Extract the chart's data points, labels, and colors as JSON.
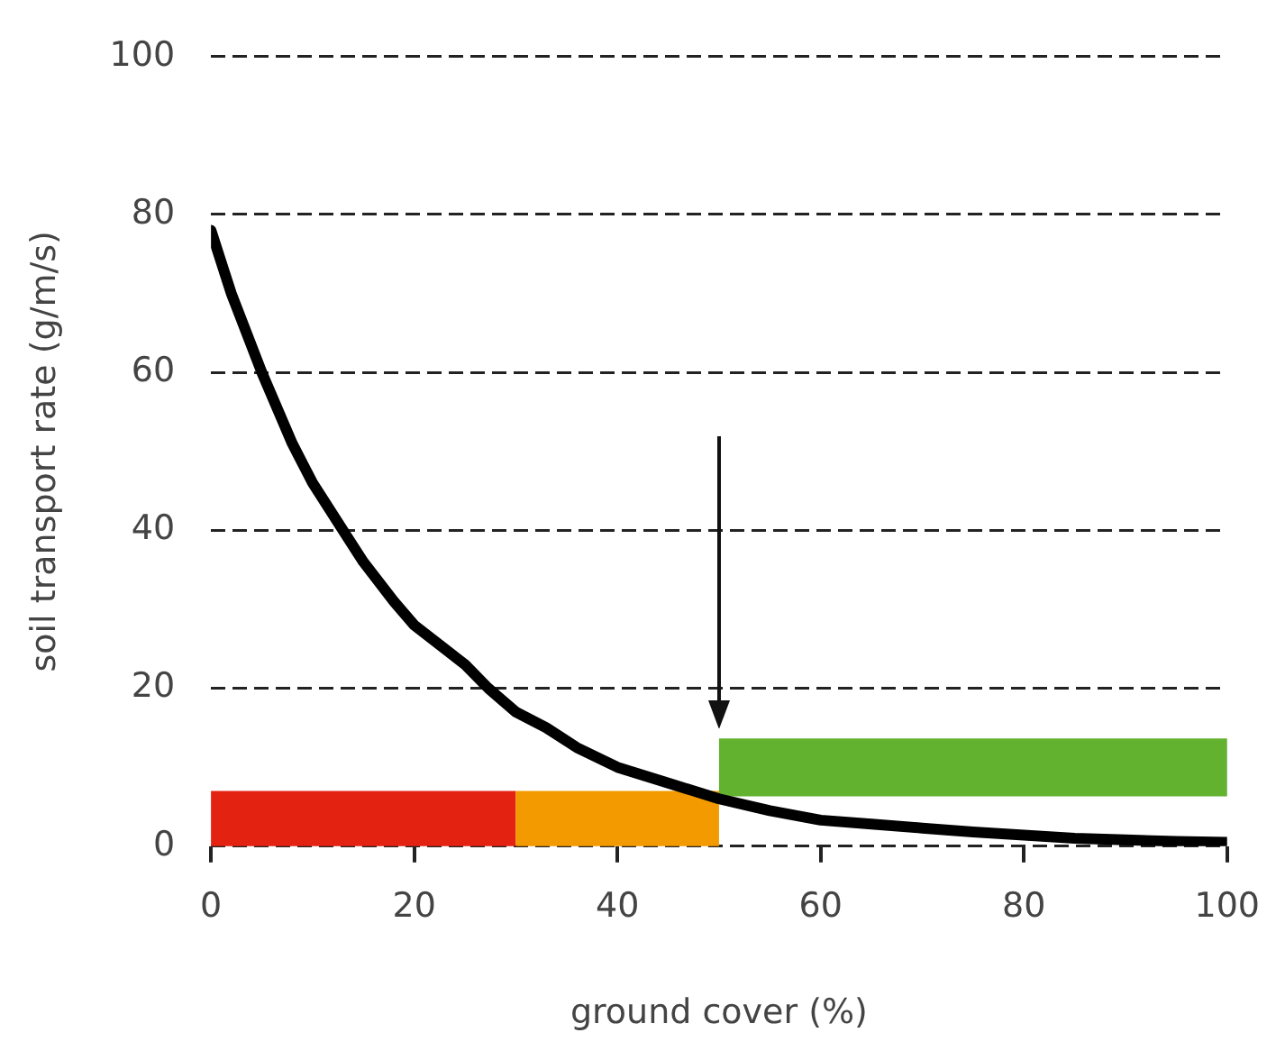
{
  "chart_data": {
    "type": "line",
    "xlabel": "ground cover (%)",
    "ylabel": "soil transport rate (g/m/s)",
    "xlim": [
      0,
      100
    ],
    "xticks": [
      0,
      20,
      40,
      60,
      80,
      100
    ],
    "ylim": [
      0,
      100
    ],
    "yticks": [
      0,
      20,
      40,
      60,
      80,
      100
    ],
    "grid": "y",
    "legend": false,
    "marker": "none",
    "series": [
      {
        "color": "#000000",
        "x": [
          0,
          2,
          5,
          8,
          10,
          13,
          15,
          18,
          20,
          23,
          25,
          27.3,
          30,
          33,
          36,
          40,
          45,
          50,
          55,
          60,
          65,
          70,
          75,
          80,
          85,
          90,
          95,
          100
        ],
        "values": [
          78,
          70,
          60,
          51,
          46,
          40,
          36,
          31,
          28,
          25,
          23,
          20,
          17,
          15,
          12.5,
          10,
          8,
          6,
          4.5,
          3.3,
          2.8,
          2.3,
          1.8,
          1.4,
          1,
          0.8,
          0.6,
          0.5
        ]
      }
    ],
    "bands": [
      {
        "axis": "x",
        "from": 0,
        "to": 30,
        "color": "#e32212"
      },
      {
        "axis": "x",
        "from": 30,
        "to": 50,
        "color": "#f39a00"
      },
      {
        "axis": "x",
        "from": 50,
        "to": 100,
        "color": "#63b22f"
      }
    ]
  }
}
